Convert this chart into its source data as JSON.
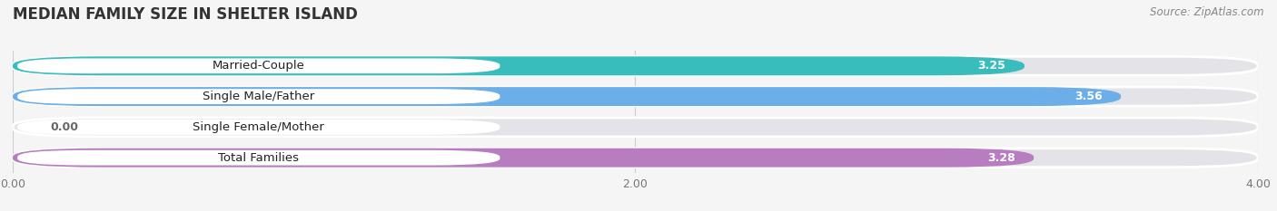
{
  "title": "MEDIAN FAMILY SIZE IN SHELTER ISLAND",
  "source": "Source: ZipAtlas.com",
  "categories": [
    "Married-Couple",
    "Single Male/Father",
    "Single Female/Mother",
    "Total Families"
  ],
  "values": [
    3.25,
    3.56,
    0.0,
    3.28
  ],
  "bar_colors": [
    "#38bcbc",
    "#6baee8",
    "#f799b0",
    "#b87cc0"
  ],
  "background_color": "#f5f5f5",
  "bar_bg_color": "#e4e4e8",
  "xlim": [
    0,
    4.0
  ],
  "xticks": [
    0.0,
    2.0,
    4.0
  ],
  "label_fontsize": 9.5,
  "value_fontsize": 9,
  "title_fontsize": 12
}
